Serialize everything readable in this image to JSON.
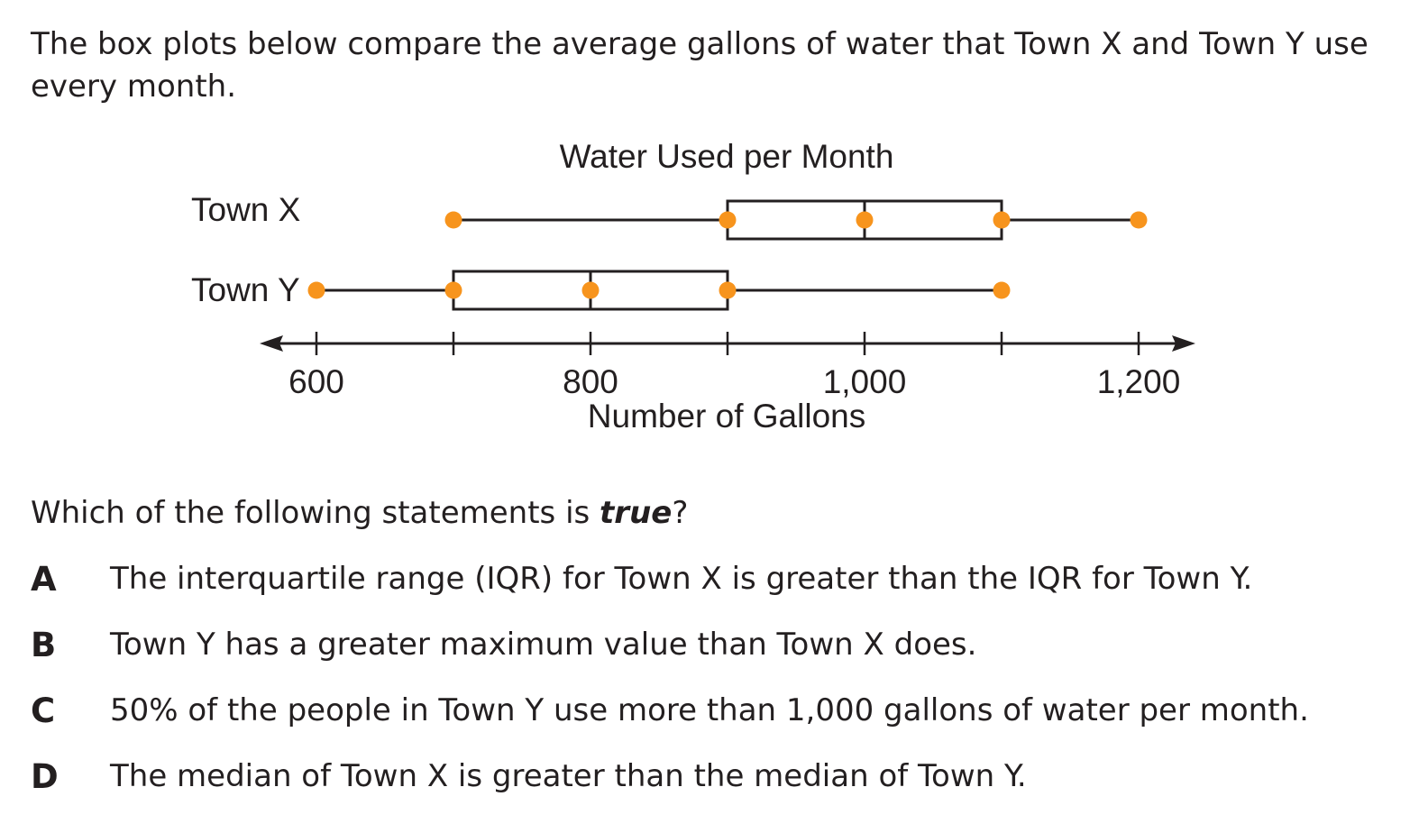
{
  "intro": "The box plots below compare the average gallons of water that Town X and Town Y use every month.",
  "chart_data": {
    "type": "box",
    "title": "Water Used per Month",
    "xlabel": "Number of Gallons",
    "ylabel": "",
    "xlim": [
      600,
      1200
    ],
    "tick_values": [
      600,
      700,
      800,
      900,
      1000,
      1100,
      1200
    ],
    "tick_labels": [
      {
        "value": 600,
        "label": "600"
      },
      {
        "value": 800,
        "label": "800"
      },
      {
        "value": 1000,
        "label": "1,000"
      },
      {
        "value": 1200,
        "label": "1,200"
      }
    ],
    "series": [
      {
        "name": "Town X",
        "min": 700,
        "q1": 900,
        "median": 1000,
        "q3": 1100,
        "max": 1200
      },
      {
        "name": "Town Y",
        "min": 600,
        "q1": 700,
        "median": 800,
        "q3": 900,
        "max": 1100
      }
    ],
    "point_color": "#f7941d",
    "line_color": "#231f20"
  },
  "question": {
    "prefix": "Which of the following statements is ",
    "emphasis": "true",
    "suffix": "?"
  },
  "options": [
    {
      "letter": "A",
      "text": "The interquartile range (IQR) for Town X is greater than the IQR for Town Y."
    },
    {
      "letter": "B",
      "text": "Town Y has a greater maximum value than Town X does."
    },
    {
      "letter": "C",
      "text": "50% of the people in Town Y use more than 1,000 gallons of water per month."
    },
    {
      "letter": "D",
      "text": "The median of Town X is greater than the median of Town Y."
    }
  ]
}
